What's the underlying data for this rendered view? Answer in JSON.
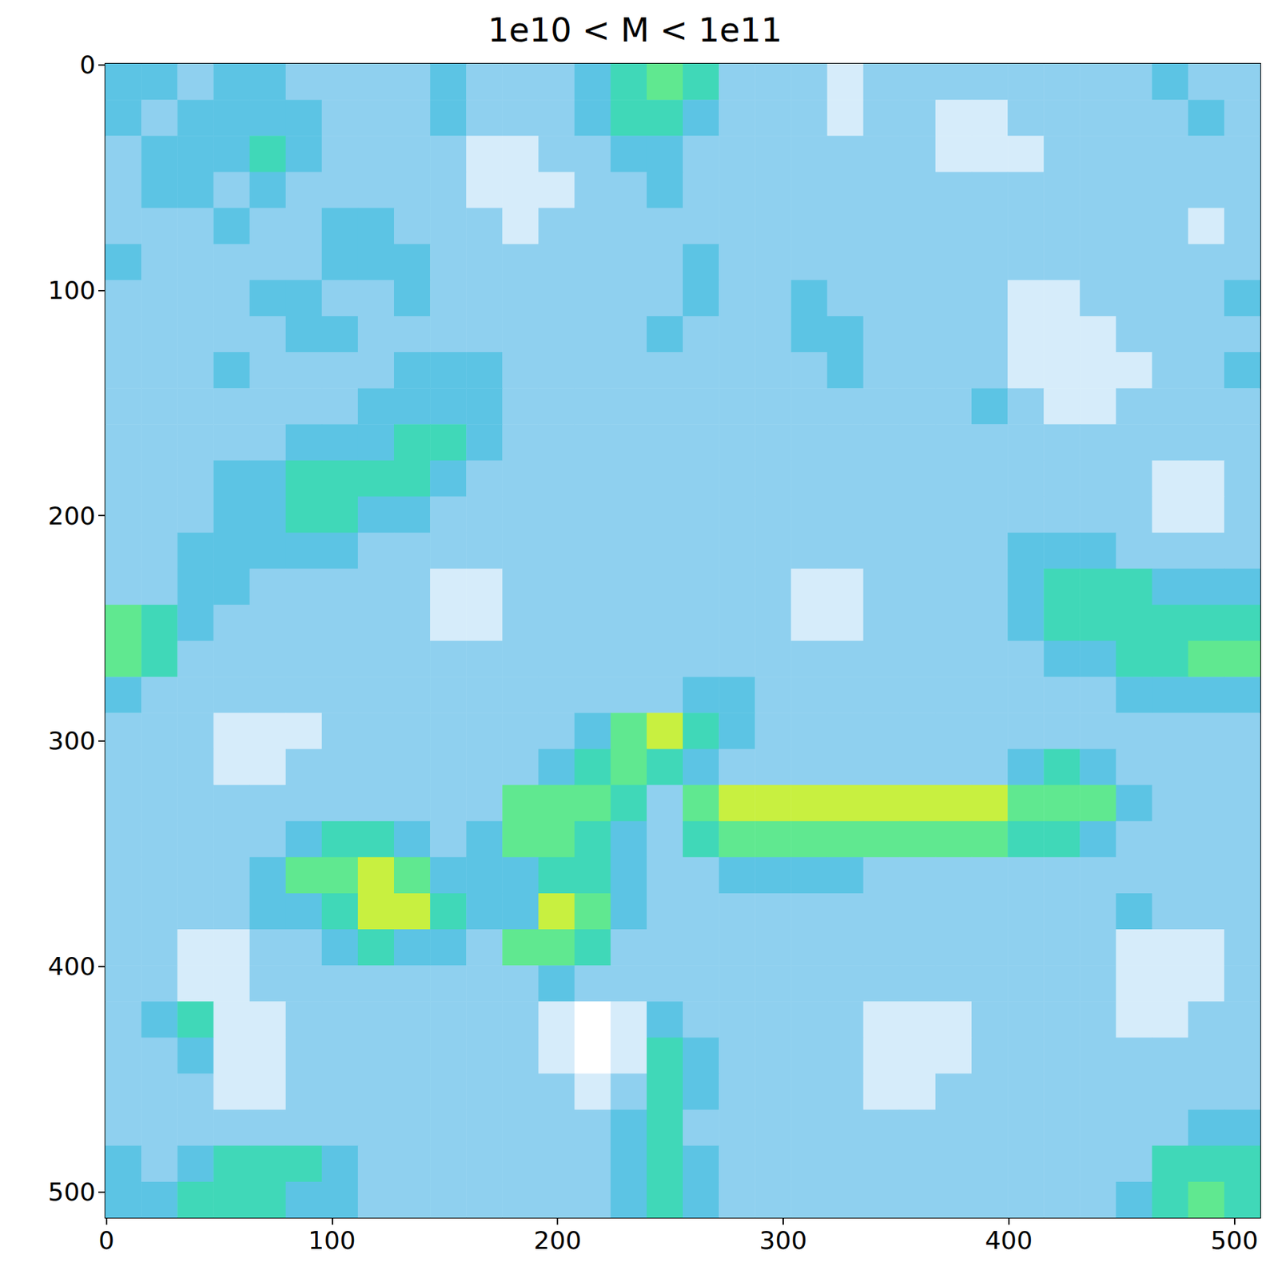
{
  "chart_data": {
    "type": "heatmap",
    "title": "1e10 < M < 1e11",
    "xlim": [
      -0.5,
      511.5
    ],
    "ylim": [
      511.5,
      -0.5
    ],
    "xticks": [
      0,
      100,
      200,
      300,
      400,
      500
    ],
    "yticks": [
      0,
      100,
      200,
      300,
      400,
      500
    ],
    "cells": [
      [
        4,
        4,
        3,
        4,
        4,
        3,
        3,
        3,
        3,
        4,
        3,
        3,
        3,
        4,
        5,
        6,
        5,
        3,
        3,
        3,
        2,
        3,
        3,
        3,
        3,
        3,
        3,
        3,
        3,
        4,
        3,
        3
      ],
      [
        4,
        3,
        4,
        4,
        4,
        4,
        3,
        3,
        3,
        4,
        3,
        3,
        3,
        4,
        5,
        5,
        4,
        3,
        3,
        3,
        2,
        3,
        3,
        2,
        2,
        3,
        3,
        3,
        3,
        3,
        4,
        3
      ],
      [
        3,
        4,
        4,
        4,
        5,
        4,
        3,
        3,
        3,
        3,
        2,
        2,
        3,
        3,
        4,
        4,
        3,
        3,
        3,
        3,
        3,
        3,
        3,
        2,
        2,
        2,
        3,
        3,
        3,
        3,
        3,
        3
      ],
      [
        3,
        4,
        4,
        3,
        4,
        3,
        3,
        3,
        3,
        3,
        2,
        2,
        2,
        3,
        3,
        4,
        3,
        3,
        3,
        3,
        3,
        3,
        3,
        3,
        3,
        3,
        3,
        3,
        3,
        3,
        3,
        3
      ],
      [
        3,
        3,
        3,
        4,
        3,
        3,
        4,
        4,
        3,
        3,
        3,
        2,
        3,
        3,
        3,
        3,
        3,
        3,
        3,
        3,
        3,
        3,
        3,
        3,
        3,
        3,
        3,
        3,
        3,
        3,
        2,
        3
      ],
      [
        4,
        3,
        3,
        3,
        3,
        3,
        4,
        4,
        4,
        3,
        3,
        3,
        3,
        3,
        3,
        3,
        4,
        3,
        3,
        3,
        3,
        3,
        3,
        3,
        3,
        3,
        3,
        3,
        3,
        3,
        3,
        3
      ],
      [
        3,
        3,
        3,
        3,
        4,
        4,
        3,
        3,
        4,
        3,
        3,
        3,
        3,
        3,
        3,
        3,
        4,
        3,
        3,
        4,
        3,
        3,
        3,
        3,
        3,
        2,
        2,
        3,
        3,
        3,
        3,
        4
      ],
      [
        3,
        3,
        3,
        3,
        3,
        4,
        4,
        3,
        3,
        3,
        3,
        3,
        3,
        3,
        3,
        4,
        3,
        3,
        3,
        4,
        4,
        3,
        3,
        3,
        3,
        2,
        2,
        2,
        3,
        3,
        3,
        3
      ],
      [
        3,
        3,
        3,
        4,
        3,
        3,
        3,
        3,
        4,
        4,
        4,
        3,
        3,
        3,
        3,
        3,
        3,
        3,
        3,
        3,
        4,
        3,
        3,
        3,
        3,
        2,
        2,
        2,
        2,
        3,
        3,
        4
      ],
      [
        3,
        3,
        3,
        3,
        3,
        3,
        3,
        4,
        4,
        4,
        4,
        3,
        3,
        3,
        3,
        3,
        3,
        3,
        3,
        3,
        3,
        3,
        3,
        3,
        4,
        3,
        2,
        2,
        3,
        3,
        3,
        3
      ],
      [
        3,
        3,
        3,
        3,
        3,
        4,
        4,
        4,
        5,
        5,
        4,
        3,
        3,
        3,
        3,
        3,
        3,
        3,
        3,
        3,
        3,
        3,
        3,
        3,
        3,
        3,
        3,
        3,
        3,
        3,
        3,
        3
      ],
      [
        3,
        3,
        3,
        4,
        4,
        5,
        5,
        5,
        5,
        4,
        3,
        3,
        3,
        3,
        3,
        3,
        3,
        3,
        3,
        3,
        3,
        3,
        3,
        3,
        3,
        3,
        3,
        3,
        3,
        2,
        2,
        3
      ],
      [
        3,
        3,
        3,
        4,
        4,
        5,
        5,
        4,
        4,
        3,
        3,
        3,
        3,
        3,
        3,
        3,
        3,
        3,
        3,
        3,
        3,
        3,
        3,
        3,
        3,
        3,
        3,
        3,
        3,
        2,
        2,
        3
      ],
      [
        3,
        3,
        4,
        4,
        4,
        4,
        4,
        3,
        3,
        3,
        3,
        3,
        3,
        3,
        3,
        3,
        3,
        3,
        3,
        3,
        3,
        3,
        3,
        3,
        3,
        4,
        4,
        4,
        3,
        3,
        3,
        3
      ],
      [
        3,
        3,
        4,
        4,
        3,
        3,
        3,
        3,
        3,
        2,
        2,
        3,
        3,
        3,
        3,
        3,
        3,
        3,
        3,
        2,
        2,
        3,
        3,
        3,
        3,
        4,
        5,
        5,
        5,
        4,
        4,
        4
      ],
      [
        6,
        5,
        4,
        3,
        3,
        3,
        3,
        3,
        3,
        2,
        2,
        3,
        3,
        3,
        3,
        3,
        3,
        3,
        3,
        2,
        2,
        3,
        3,
        3,
        3,
        4,
        5,
        5,
        5,
        5,
        5,
        5
      ],
      [
        6,
        5,
        3,
        3,
        3,
        3,
        3,
        3,
        3,
        3,
        3,
        3,
        3,
        3,
        3,
        3,
        3,
        3,
        3,
        3,
        3,
        3,
        3,
        3,
        3,
        3,
        4,
        4,
        5,
        5,
        6,
        6
      ],
      [
        4,
        3,
        3,
        3,
        3,
        3,
        3,
        3,
        3,
        3,
        3,
        3,
        3,
        3,
        3,
        3,
        4,
        4,
        3,
        3,
        3,
        3,
        3,
        3,
        3,
        3,
        3,
        3,
        4,
        4,
        4,
        4
      ],
      [
        3,
        3,
        3,
        2,
        2,
        2,
        3,
        3,
        3,
        3,
        3,
        3,
        3,
        4,
        6,
        7,
        5,
        4,
        3,
        3,
        3,
        3,
        3,
        3,
        3,
        3,
        3,
        3,
        3,
        3,
        3,
        3
      ],
      [
        3,
        3,
        3,
        2,
        2,
        3,
        3,
        3,
        3,
        3,
        3,
        3,
        4,
        5,
        6,
        5,
        4,
        3,
        3,
        3,
        3,
        3,
        3,
        3,
        3,
        4,
        5,
        4,
        3,
        3,
        3,
        3
      ],
      [
        3,
        3,
        3,
        3,
        3,
        3,
        3,
        3,
        3,
        3,
        3,
        6,
        6,
        6,
        5,
        3,
        6,
        7,
        7,
        7,
        7,
        7,
        7,
        7,
        7,
        6,
        6,
        6,
        4,
        3,
        3,
        3
      ],
      [
        3,
        3,
        3,
        3,
        3,
        4,
        5,
        5,
        4,
        3,
        4,
        6,
        6,
        5,
        4,
        3,
        5,
        6,
        6,
        6,
        6,
        6,
        6,
        6,
        6,
        5,
        5,
        4,
        3,
        3,
        3,
        3
      ],
      [
        3,
        3,
        3,
        3,
        4,
        6,
        6,
        7,
        6,
        4,
        4,
        4,
        5,
        5,
        4,
        3,
        3,
        4,
        4,
        4,
        4,
        3,
        3,
        3,
        3,
        3,
        3,
        3,
        3,
        3,
        3,
        3
      ],
      [
        3,
        3,
        3,
        3,
        4,
        4,
        5,
        7,
        7,
        5,
        4,
        4,
        7,
        6,
        4,
        3,
        3,
        3,
        3,
        3,
        3,
        3,
        3,
        3,
        3,
        3,
        3,
        3,
        4,
        3,
        3,
        3
      ],
      [
        3,
        3,
        2,
        2,
        3,
        3,
        4,
        5,
        4,
        4,
        3,
        6,
        6,
        5,
        3,
        3,
        3,
        3,
        3,
        3,
        3,
        3,
        3,
        3,
        3,
        3,
        3,
        3,
        2,
        2,
        2,
        3
      ],
      [
        3,
        3,
        2,
        2,
        3,
        3,
        3,
        3,
        3,
        3,
        3,
        3,
        4,
        3,
        3,
        3,
        3,
        3,
        3,
        3,
        3,
        3,
        3,
        3,
        3,
        3,
        3,
        3,
        2,
        2,
        2,
        3
      ],
      [
        3,
        4,
        5,
        2,
        2,
        3,
        3,
        3,
        3,
        3,
        3,
        3,
        2,
        1,
        2,
        4,
        3,
        3,
        3,
        3,
        3,
        2,
        2,
        2,
        3,
        3,
        3,
        3,
        2,
        2,
        3,
        3
      ],
      [
        3,
        3,
        4,
        2,
        2,
        3,
        3,
        3,
        3,
        3,
        3,
        3,
        2,
        1,
        2,
        5,
        4,
        3,
        3,
        3,
        3,
        2,
        2,
        2,
        3,
        3,
        3,
        3,
        3,
        3,
        3,
        3
      ],
      [
        3,
        3,
        3,
        2,
        2,
        3,
        3,
        3,
        3,
        3,
        3,
        3,
        3,
        2,
        3,
        5,
        4,
        3,
        3,
        3,
        3,
        2,
        2,
        3,
        3,
        3,
        3,
        3,
        3,
        3,
        3,
        3
      ],
      [
        3,
        3,
        3,
        3,
        3,
        3,
        3,
        3,
        3,
        3,
        3,
        3,
        3,
        3,
        4,
        5,
        3,
        3,
        3,
        3,
        3,
        3,
        3,
        3,
        3,
        3,
        3,
        3,
        3,
        3,
        4,
        4
      ],
      [
        4,
        3,
        4,
        5,
        5,
        5,
        4,
        3,
        3,
        3,
        3,
        3,
        3,
        3,
        4,
        5,
        4,
        3,
        3,
        3,
        3,
        3,
        3,
        3,
        3,
        3,
        3,
        3,
        3,
        5,
        5,
        5
      ],
      [
        4,
        4,
        5,
        5,
        5,
        4,
        4,
        3,
        3,
        3,
        3,
        3,
        3,
        3,
        4,
        5,
        4,
        3,
        3,
        3,
        3,
        3,
        3,
        3,
        3,
        3,
        3,
        3,
        4,
        5,
        6,
        5
      ]
    ]
  }
}
